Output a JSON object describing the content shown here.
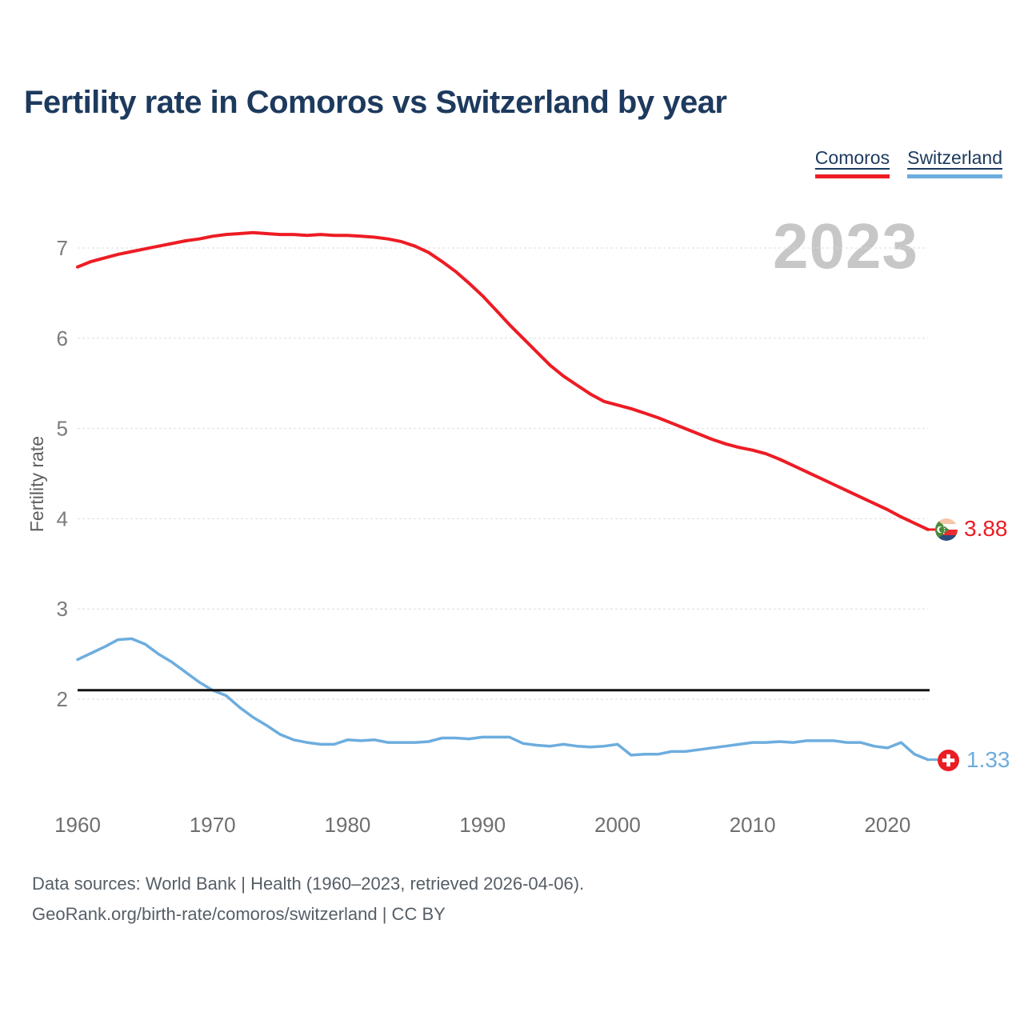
{
  "title": "Fertility rate in Comoros vs Switzerland by year",
  "watermark_year": "2023",
  "legend": {
    "items": [
      {
        "label": "Comoros",
        "color": "#ed1c24"
      },
      {
        "label": "Switzerland",
        "color": "#6dadde"
      }
    ]
  },
  "y_axis": {
    "label": "Fertility rate",
    "ticks": [
      7,
      6,
      5,
      4,
      3,
      2
    ]
  },
  "x_axis": {
    "ticks": [
      1960,
      1970,
      1980,
      1990,
      2000,
      2010,
      2020
    ]
  },
  "footer": {
    "line1": "Data sources: World Bank | Health (1960–2023, retrieved 2026-04-06).",
    "line2": "GeoRank.org/birth-rate/comoros/switzerland | CC BY"
  },
  "chart_data": {
    "type": "line",
    "title": "Fertility rate in Comoros vs Switzerland by year",
    "xlabel": "",
    "ylabel": "Fertility rate",
    "xlim": [
      1960,
      2023
    ],
    "ylim": [
      1.1,
      7.4
    ],
    "grid": "horizontal-dashed",
    "legend_position": "top-right",
    "reference_line": {
      "value": 2.1,
      "color": "#111111"
    },
    "x": [
      1960,
      1961,
      1962,
      1963,
      1964,
      1965,
      1966,
      1967,
      1968,
      1969,
      1970,
      1971,
      1972,
      1973,
      1974,
      1975,
      1976,
      1977,
      1978,
      1979,
      1980,
      1981,
      1982,
      1983,
      1984,
      1985,
      1986,
      1987,
      1988,
      1989,
      1990,
      1991,
      1992,
      1993,
      1994,
      1995,
      1996,
      1997,
      1998,
      1999,
      2000,
      2001,
      2002,
      2003,
      2004,
      2005,
      2006,
      2007,
      2008,
      2009,
      2010,
      2011,
      2012,
      2013,
      2014,
      2015,
      2016,
      2017,
      2018,
      2019,
      2020,
      2021,
      2022,
      2023
    ],
    "series": [
      {
        "name": "Comoros",
        "color": "#ed1c24",
        "end_label": "3.88",
        "values": [
          6.79,
          6.85,
          6.89,
          6.93,
          6.96,
          6.99,
          7.02,
          7.05,
          7.08,
          7.1,
          7.13,
          7.15,
          7.16,
          7.17,
          7.16,
          7.15,
          7.15,
          7.14,
          7.15,
          7.14,
          7.14,
          7.13,
          7.12,
          7.1,
          7.07,
          7.02,
          6.95,
          6.85,
          6.74,
          6.61,
          6.47,
          6.31,
          6.15,
          6.0,
          5.85,
          5.7,
          5.58,
          5.48,
          5.38,
          5.3,
          5.26,
          5.22,
          5.17,
          5.12,
          5.06,
          5.0,
          4.94,
          4.88,
          4.83,
          4.79,
          4.76,
          4.72,
          4.66,
          4.59,
          4.52,
          4.45,
          4.38,
          4.31,
          4.24,
          4.17,
          4.1,
          4.02,
          3.95,
          3.88
        ]
      },
      {
        "name": "Switzerland",
        "color": "#6dadde",
        "end_label": "1.33",
        "values": [
          2.44,
          2.51,
          2.58,
          2.66,
          2.67,
          2.61,
          2.5,
          2.41,
          2.3,
          2.19,
          2.1,
          2.04,
          1.91,
          1.8,
          1.71,
          1.61,
          1.55,
          1.52,
          1.5,
          1.5,
          1.55,
          1.54,
          1.55,
          1.52,
          1.52,
          1.52,
          1.53,
          1.57,
          1.57,
          1.56,
          1.58,
          1.58,
          1.58,
          1.51,
          1.49,
          1.48,
          1.5,
          1.48,
          1.47,
          1.48,
          1.5,
          1.38,
          1.39,
          1.39,
          1.42,
          1.42,
          1.44,
          1.46,
          1.48,
          1.5,
          1.52,
          1.52,
          1.53,
          1.52,
          1.54,
          1.54,
          1.54,
          1.52,
          1.52,
          1.48,
          1.46,
          1.52,
          1.39,
          1.33
        ]
      }
    ]
  }
}
